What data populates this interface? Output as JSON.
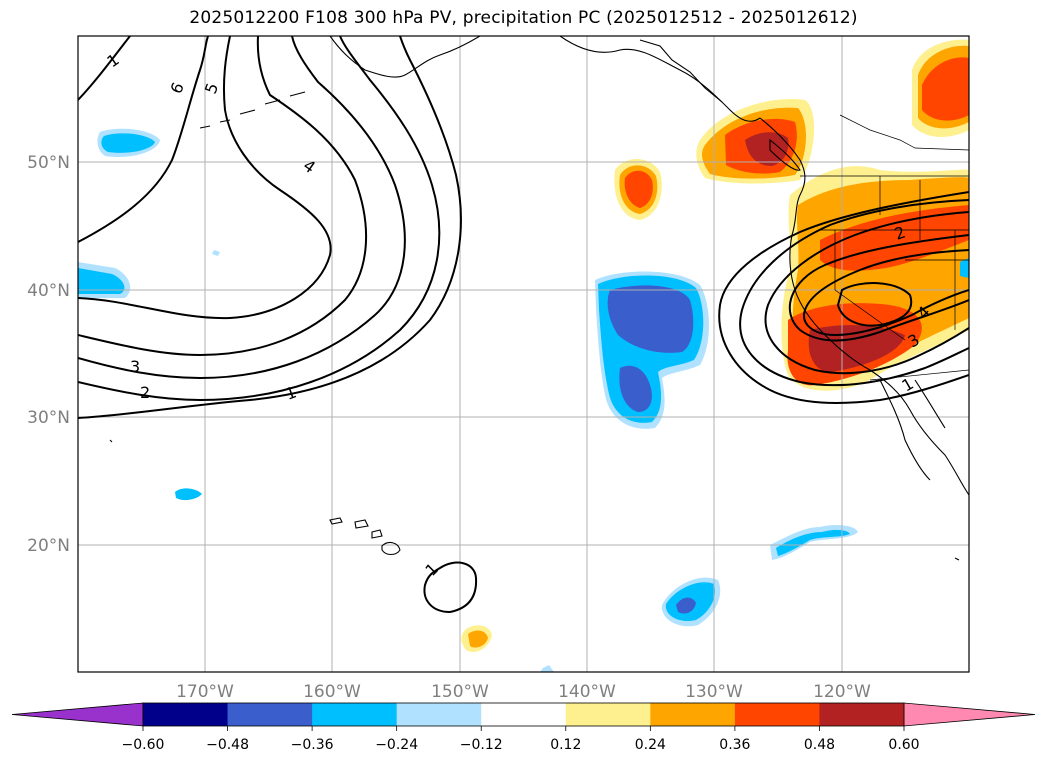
{
  "title": "2025012200 F108 300 hPa PV, precipitation PC (2025012512 - 2025012612)",
  "map": {
    "lat_labels": [
      "50°N",
      "40°N",
      "30°N",
      "20°N"
    ],
    "lon_labels": [
      "170°W",
      "160°W",
      "150°W",
      "140°W",
      "130°W",
      "120°W"
    ],
    "contour_labels": [
      "1",
      "6",
      "5",
      "4",
      "3",
      "2",
      "1",
      "1",
      "2",
      "4",
      "3",
      "1"
    ]
  },
  "colorbar": {
    "ticks": [
      "−0.60",
      "−0.48",
      "−0.36",
      "−0.24",
      "−0.12",
      "0.12",
      "0.24",
      "0.36",
      "0.48",
      "0.60"
    ],
    "colors": {
      "under": "#9932cc",
      "bins": [
        "#00008b",
        "#3a5fcd",
        "#00bfff",
        "#b0e2ff",
        "#ffffff",
        "#fff08f",
        "#ffa500",
        "#ff4500",
        "#b22222"
      ],
      "over": "#ff89b0"
    }
  }
}
